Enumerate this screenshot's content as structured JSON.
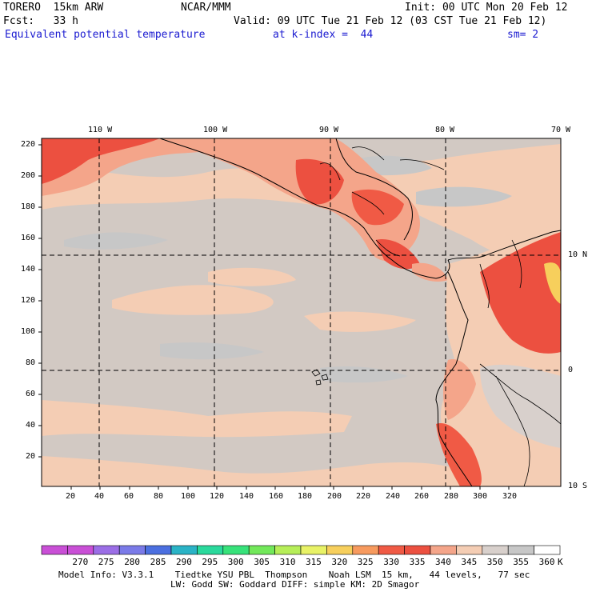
{
  "header": {
    "model": "TORERO  15km ARW",
    "org": "NCAR/MMM",
    "init": "Init: 00 UTC Mon 20 Feb 12",
    "fcst": "Fcst:   33 h",
    "valid": "Valid: 09 UTC Tue 21 Feb 12 (03 CST Tue 21 Feb 12)",
    "field": "Equivalent potential temperature",
    "level": "at k-index =  44",
    "smooth": "sm= 2"
  },
  "map": {
    "lon_labels": [
      "110 W",
      "100 W",
      "90 W",
      "80 W",
      "70 W"
    ],
    "lat_labels": [
      "10 N",
      "0",
      "10 S"
    ],
    "y_ticks": [
      "220",
      "200",
      "180",
      "160",
      "140",
      "120",
      "100",
      "80",
      "60",
      "40",
      "20"
    ],
    "x_ticks": [
      "20",
      "40",
      "60",
      "80",
      "100",
      "120",
      "140",
      "160",
      "180",
      "200",
      "220",
      "240",
      "260",
      "280",
      "300",
      "320"
    ]
  },
  "colorbar": {
    "labels": [
      "270",
      "275",
      "280",
      "285",
      "290",
      "295",
      "300",
      "305",
      "310",
      "315",
      "320",
      "325",
      "330",
      "335",
      "340",
      "345",
      "350",
      "355",
      "360"
    ],
    "unit": "K",
    "colors": [
      "#c94fd6",
      "#9b6ee6",
      "#7a7ae8",
      "#4b6fe0",
      "#2ab3c6",
      "#2ad99c",
      "#37e27a",
      "#72e85a",
      "#b6ee58",
      "#e8f266",
      "#f7cf5c",
      "#f79a5e",
      "#f05a45",
      "#ec5040",
      "#f4a58a",
      "#f4cdb4",
      "#d8d0cc",
      "#c7c7c7",
      "#ffffff"
    ]
  },
  "footer": {
    "line1": "Model Info: V3.3.1    Tiedtke YSU PBL  Thompson    Noah LSM  15 km,   44 levels,   77 sec",
    "line2": "LW: Godd SW: Goddard DIFF: simple KM: 2D Smagor"
  }
}
